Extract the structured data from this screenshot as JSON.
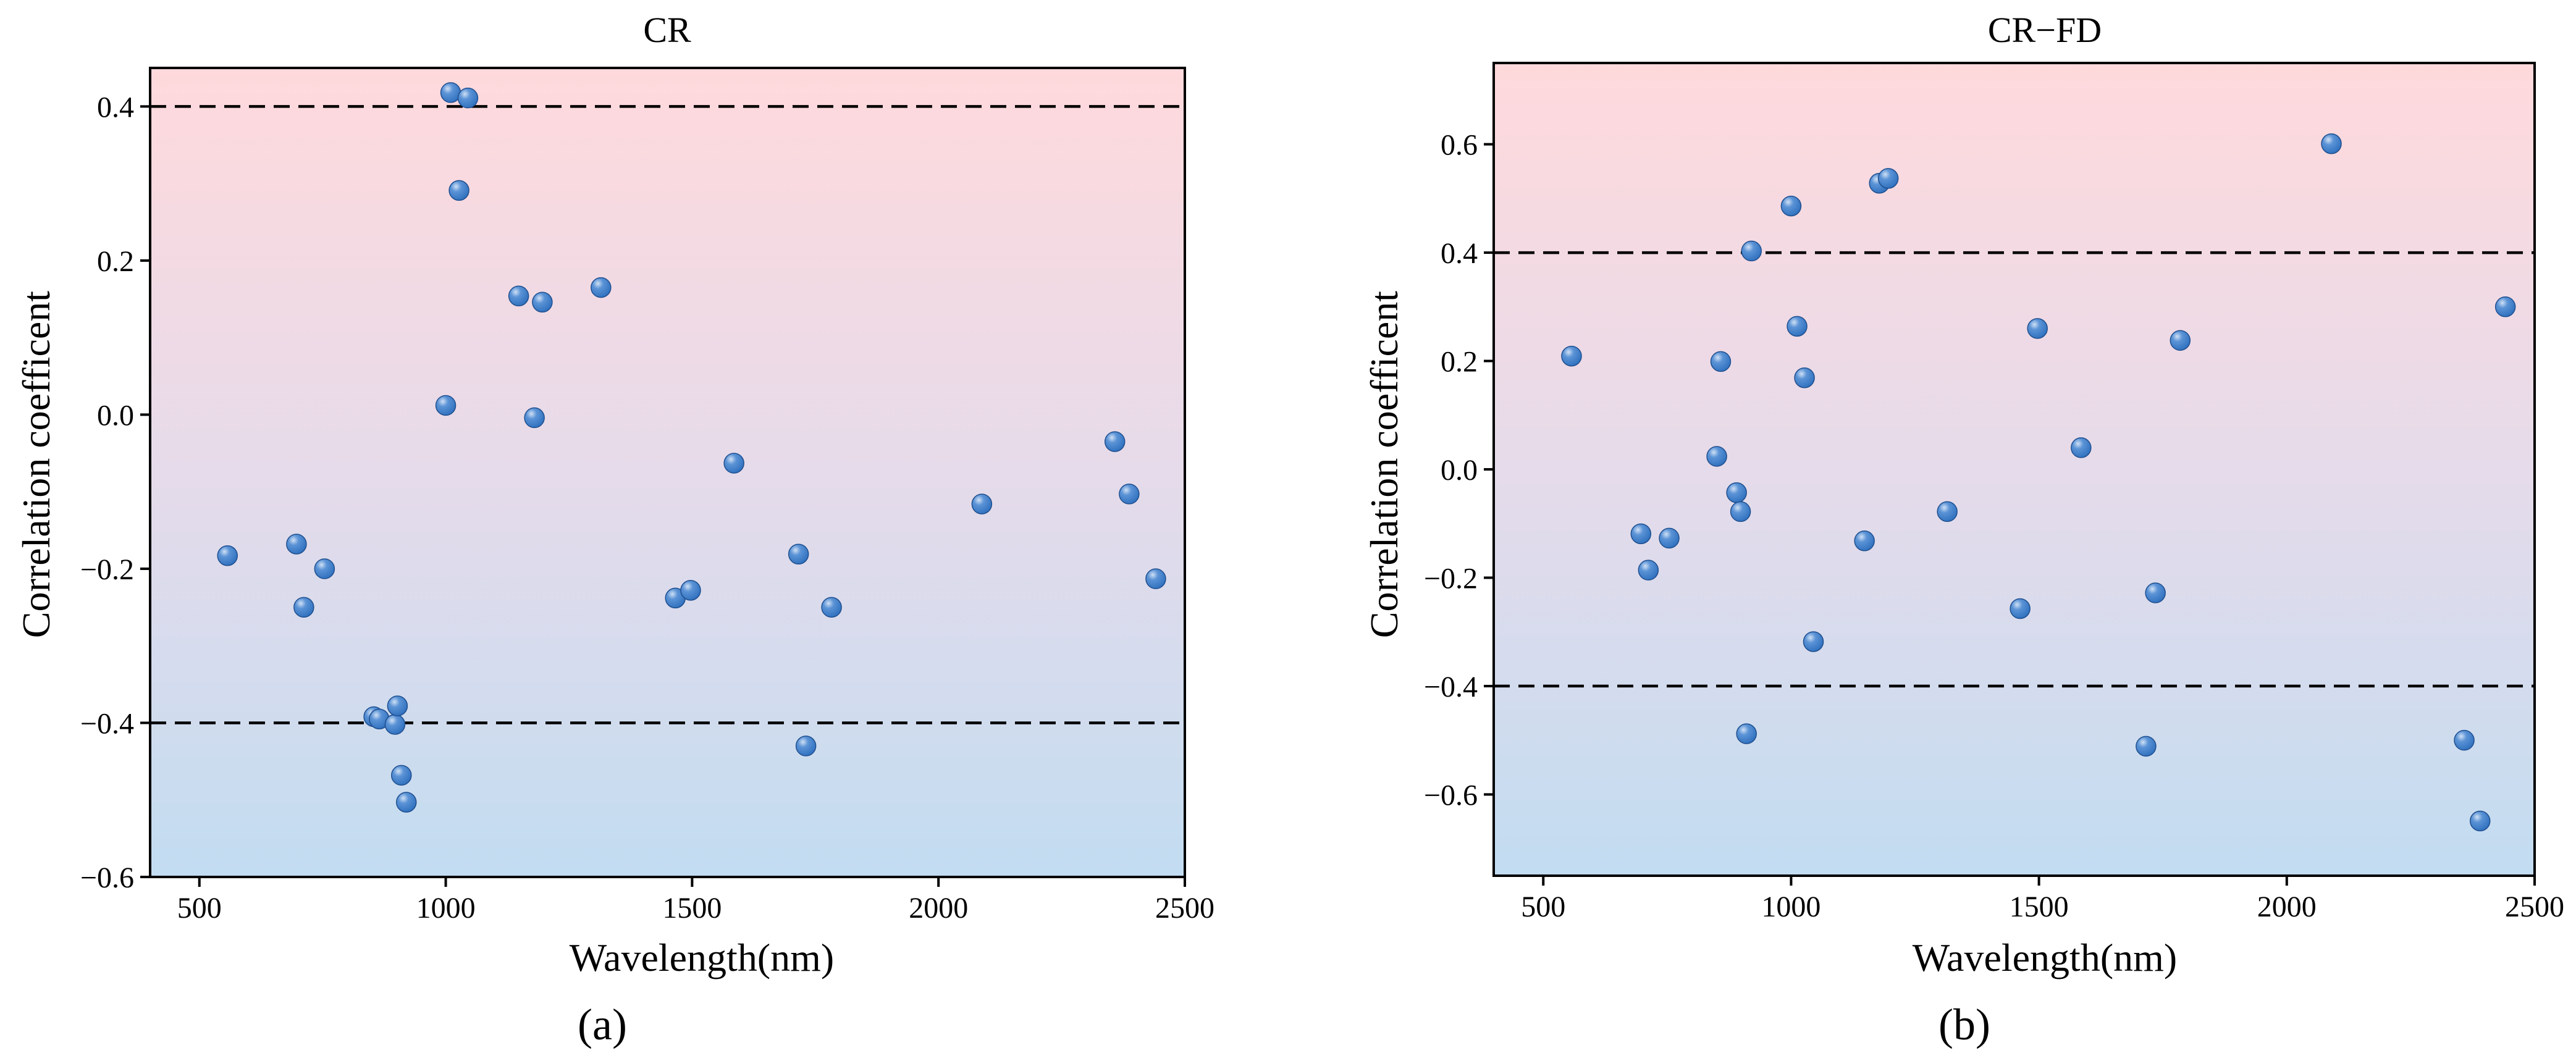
{
  "colors": {
    "point_fill": "#2e6fbd",
    "point_highlight": "#cfe0f5",
    "bg_top": "#ffd9dc",
    "bg_mid": "#e6dbea",
    "bg_bottom": "#c2dcf1",
    "threshold_line": "#000000"
  },
  "chart_data": [
    {
      "type": "scatter",
      "title": "CR",
      "xlabel": "Wavelength(nm)",
      "ylabel": "Correlation coefficent",
      "panel_label": "(a)",
      "xlim": [
        400,
        2500
      ],
      "ylim": [
        -0.6,
        0.45
      ],
      "x_ticks": [
        500,
        1000,
        1500,
        2000,
        2500
      ],
      "x_tick_labels": [
        "500",
        "1000",
        "1500",
        "2000",
        "2500"
      ],
      "y_ticks": [
        -0.6,
        -0.4,
        -0.2,
        0.0,
        0.2,
        0.4
      ],
      "y_tick_labels": [
        "−0.6",
        "−0.4",
        "−0.2",
        "0.0",
        "0.2",
        "0.4"
      ],
      "thresholds": [
        0.4,
        -0.4
      ],
      "x": [
        557,
        697,
        712,
        754,
        854,
        865,
        897,
        902,
        910,
        920,
        1000,
        1010,
        1027,
        1045,
        1148,
        1180,
        1196,
        1315,
        1466,
        1497,
        1585,
        1716,
        1731,
        1783,
        2088,
        2358,
        2387,
        2441
      ],
      "y": [
        -0.183,
        -0.168,
        -0.25,
        -0.2,
        -0.392,
        -0.395,
        -0.402,
        -0.378,
        -0.468,
        -0.503,
        0.012,
        0.418,
        0.291,
        0.411,
        0.154,
        -0.004,
        0.146,
        0.165,
        -0.238,
        -0.228,
        -0.063,
        -0.181,
        -0.43,
        -0.25,
        -0.116,
        -0.035,
        -0.103,
        -0.213
      ]
    },
    {
      "type": "scatter",
      "title": "CR−FD",
      "xlabel": "Wavelength(nm)",
      "ylabel": "Correlation coefficent",
      "panel_label": "(b)",
      "xlim": [
        400,
        2500
      ],
      "ylim": [
        -0.75,
        0.75
      ],
      "x_ticks": [
        500,
        1000,
        1500,
        2000,
        2500
      ],
      "x_tick_labels": [
        "500",
        "1000",
        "1500",
        "2000",
        "2500"
      ],
      "y_ticks": [
        -0.6,
        -0.4,
        -0.2,
        0.0,
        0.2,
        0.4,
        0.6
      ],
      "y_tick_labels": [
        "−0.6",
        "−0.4",
        "−0.2",
        "0.0",
        "0.2",
        "0.4",
        "0.6"
      ],
      "thresholds": [
        0.4,
        -0.4
      ],
      "x": [
        557,
        697,
        712,
        754,
        850,
        858,
        890,
        898,
        910,
        920,
        1000,
        1012,
        1027,
        1045,
        1148,
        1178,
        1196,
        1315,
        1462,
        1497,
        1585,
        1716,
        1735,
        1785,
        2090,
        2358,
        2390,
        2441
      ],
      "y": [
        0.209,
        -0.119,
        -0.186,
        -0.127,
        0.024,
        0.199,
        -0.043,
        -0.078,
        -0.488,
        0.403,
        0.486,
        0.264,
        0.169,
        -0.318,
        -0.132,
        0.528,
        0.537,
        -0.078,
        -0.257,
        0.26,
        0.04,
        -0.511,
        -0.228,
        0.238,
        0.601,
        -0.5,
        -0.649,
        0.3
      ]
    }
  ]
}
